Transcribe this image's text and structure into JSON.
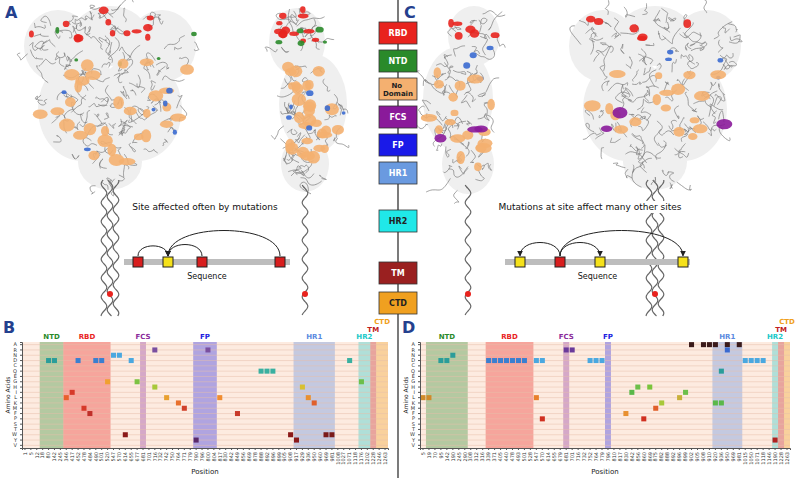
{
  "panels": [
    {
      "letter": "A",
      "caption": "Site affected often by mutations",
      "axis_label": "Sequence"
    },
    {
      "letter": "B"
    },
    {
      "letter": "C",
      "caption": "Mutations at site affect many other sites",
      "axis_label": "Sequence"
    },
    {
      "letter": "D"
    }
  ],
  "domain_key": [
    {
      "label": "RBD",
      "color": "#e8231e"
    },
    {
      "label": "NTD",
      "color": "#2a8a2a"
    },
    {
      "label": "No Domain",
      "color": "#f4b070"
    },
    {
      "label": "FCS",
      "color": "#8a1a9a"
    },
    {
      "label": "FP",
      "color": "#1a1ae8"
    },
    {
      "label": "HR1",
      "color": "#6a9ae0"
    },
    {
      "label": "HR2",
      "color": "#20e8e8"
    },
    {
      "label": "TM",
      "color": "#9a2020"
    },
    {
      "label": "CTD",
      "color": "#f0a020"
    }
  ],
  "chart_data": [
    {
      "type": "scatter",
      "marker": "square",
      "grid": true,
      "x_label": "Position",
      "y_label": "Amino Acids",
      "categories": [
        1,
        5,
        12,
        18,
        80,
        142,
        245,
        346,
        417,
        452,
        478,
        484,
        490,
        501,
        520,
        547,
        570,
        614,
        655,
        677,
        681,
        701,
        716,
        732,
        742,
        750,
        764,
        771,
        779,
        790,
        796,
        800,
        804,
        817,
        830,
        842,
        849,
        856,
        869,
        878,
        888,
        892,
        896,
        899,
        905,
        908,
        917,
        929,
        936,
        950,
        960,
        969,
        981,
        1008,
        1027,
        1071,
        1118,
        1176,
        1202,
        1228,
        1246,
        1263
      ],
      "y_categories": [
        "A",
        "R",
        "N",
        "D",
        "C",
        "Q",
        "E",
        "G",
        "H",
        "I",
        "L",
        "K",
        "M",
        "F",
        "P",
        "S",
        "T",
        "W",
        "Y",
        "V"
      ],
      "regions": [
        {
          "label": "NTD",
          "start": 14,
          "end": 305,
          "color": "#2a8a2a"
        },
        {
          "label": "RBD",
          "start": 319,
          "end": 541,
          "color": "#e8231e"
        },
        {
          "label": "FCS",
          "start": 681,
          "end": 685,
          "color": "#8a2a9a"
        },
        {
          "label": "FP",
          "start": 788,
          "end": 806,
          "color": "#2020e0"
        },
        {
          "label": "HR1",
          "start": 912,
          "end": 984,
          "color": "#5a8ae0"
        },
        {
          "label": "HR2",
          "start": 1163,
          "end": 1213,
          "color": "#20c8c8"
        },
        {
          "label": "TM",
          "start": 1214,
          "end": 1237,
          "color": "#c02020"
        },
        {
          "label": "CTD",
          "start": 1238,
          "end": 1273,
          "color": "#f0a020"
        }
      ],
      "series": [
        {
          "x": [
            80,
            142,
            452,
            490,
            501,
            547,
            570,
            655,
            346,
            417,
            478,
            484,
            520,
            614,
            716,
            790,
            800,
            677,
            716,
            742,
            764,
            771,
            888,
            892,
            896,
            817,
            849,
            908,
            917,
            929,
            936,
            950,
            969,
            981,
            1071,
            1176
          ],
          "values": [
            "D",
            "D",
            "D",
            "D",
            "D",
            "N",
            "N",
            "D",
            "L",
            "I",
            "M",
            "F",
            "G",
            "W",
            "R",
            "Y",
            "R",
            "G",
            "H",
            "L",
            "K",
            "M",
            "Q",
            "Q",
            "Q",
            "L",
            "F",
            "W",
            "Y",
            "H",
            "L",
            "K",
            "W",
            "W",
            "D",
            "G"
          ],
          "colors": [
            "#2a9d9a",
            "#2a9d9a",
            "#3a7fd0",
            "#3a7fd0",
            "#3a7fd0",
            "#4aa8e0",
            "#4aa8e0",
            "#4aa8e0",
            "#e8602c",
            "#d63a2a",
            "#d63a2a",
            "#c0302a",
            "#f0a030",
            "#8b1a1a",
            "#7a4fa0",
            "#5a2a6a",
            "#7a4fa0",
            "#7dc242",
            "#a8c83a",
            "#e8a030",
            "#e8702c",
            "#d0402a",
            "#3ab0a0",
            "#3ab0a0",
            "#3ab0a0",
            "#f08c30",
            "#c83a2a",
            "#8b1a1a",
            "#8b1a1a",
            "#d8c030",
            "#e89030",
            "#e0602a",
            "#7a1a1a",
            "#7a1a1a",
            "#3ab0a0",
            "#6cbf4a"
          ]
        }
      ]
    },
    {
      "type": "scatter",
      "marker": "square",
      "grid": true,
      "x_label": "Position",
      "y_label": "Amino Acids",
      "categories": [
        5,
        19,
        70,
        95,
        142,
        190,
        245,
        290,
        308,
        312,
        316,
        339,
        371,
        405,
        440,
        478,
        493,
        501,
        528,
        547,
        570,
        614,
        655,
        679,
        681,
        701,
        716,
        732,
        752,
        764,
        779,
        796,
        810,
        817,
        830,
        842,
        856,
        860,
        869,
        875,
        882,
        888,
        892,
        896,
        899,
        902,
        905,
        908,
        910,
        920,
        936,
        950,
        969,
        981,
        1015,
        1050,
        1071,
        1118,
        1146,
        1190,
        1228,
        1263
      ],
      "y_categories": [
        "A",
        "R",
        "N",
        "D",
        "C",
        "Q",
        "E",
        "G",
        "H",
        "I",
        "L",
        "K",
        "M",
        "F",
        "P",
        "S",
        "T",
        "W",
        "Y",
        "V"
      ],
      "regions": [
        {
          "label": "NTD",
          "start": 14,
          "end": 305,
          "color": "#2a8a2a"
        },
        {
          "label": "RBD",
          "start": 319,
          "end": 541,
          "color": "#e8231e"
        },
        {
          "label": "FCS",
          "start": 681,
          "end": 685,
          "color": "#8a2a9a"
        },
        {
          "label": "FP",
          "start": 788,
          "end": 806,
          "color": "#2020e0"
        },
        {
          "label": "HR1",
          "start": 912,
          "end": 984,
          "color": "#5a8ae0"
        },
        {
          "label": "HR2",
          "start": 1163,
          "end": 1213,
          "color": "#20c8c8"
        },
        {
          "label": "TM",
          "start": 1214,
          "end": 1237,
          "color": "#c02020"
        },
        {
          "label": "CTD",
          "start": 1238,
          "end": 1273,
          "color": "#f0a020"
        }
      ],
      "series": [
        {
          "x": [
            5,
            19,
            95,
            142,
            190,
            339,
            371,
            405,
            440,
            478,
            493,
            501,
            547,
            570,
            681,
            701,
            752,
            764,
            779,
            547,
            570,
            842,
            856,
            869,
            882,
            896,
            830,
            860,
            875,
            902,
            908,
            910,
            920,
            950,
            981,
            920,
            936,
            899,
            950,
            936,
            1015,
            1050,
            1071,
            1118,
            1190
          ],
          "values": [
            "L",
            "L",
            "D",
            "D",
            "N",
            "D",
            "D",
            "D",
            "D",
            "D",
            "D",
            "D",
            "D",
            "D",
            "R",
            "R",
            "D",
            "D",
            "D",
            "L",
            "P",
            "I",
            "H",
            "H",
            "K",
            "L",
            "F",
            "P",
            "M",
            "A",
            "A",
            "A",
            "A",
            "A",
            "A",
            "K",
            "K",
            "I",
            "R",
            "Q",
            "D",
            "D",
            "D",
            "D",
            "Y"
          ],
          "colors": [
            "#d08a2a",
            "#d08a2a",
            "#2a9d9a",
            "#2a9d9a",
            "#2a9d9a",
            "#3a7fd0",
            "#3a7fd0",
            "#3a7fd0",
            "#3a7fd0",
            "#3a7fd0",
            "#3a7fd0",
            "#3a7fd0",
            "#4aa8e0",
            "#4aa8e0",
            "#6a3a9a",
            "#6a3a9a",
            "#4aa8e0",
            "#4aa8e0",
            "#4aa8e0",
            "#e8802c",
            "#d03020",
            "#5ab84a",
            "#6cbf4a",
            "#7ac43c",
            "#a8c83a",
            "#c8b03a",
            "#e89030",
            "#d03020",
            "#e0602a",
            "#3a1a1a",
            "#3a1a1a",
            "#3a1a1a",
            "#3a1a1a",
            "#3a1a1a",
            "#3a1a1a",
            "#5ab84a",
            "#5ab84a",
            "#6cbf4a",
            "#3a6ad0",
            "#2a9d9a",
            "#4aa8e0",
            "#4aa8e0",
            "#4aa8e0",
            "#4aa8e0",
            "#b02020"
          ]
        }
      ]
    }
  ]
}
